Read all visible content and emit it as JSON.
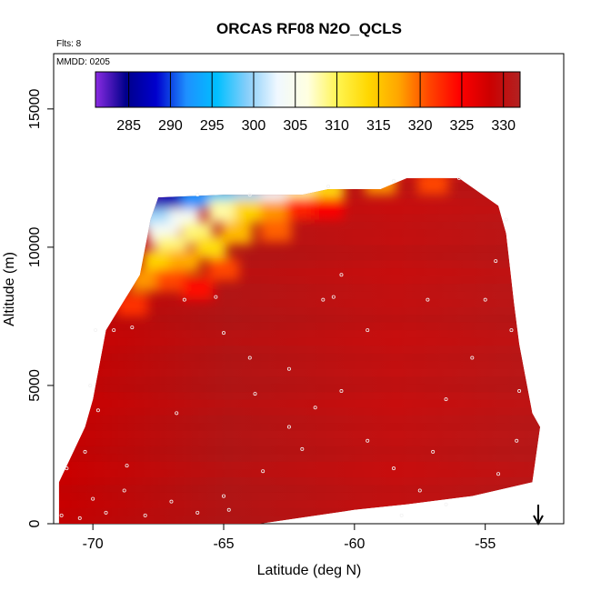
{
  "chart_data": {
    "type": "heatmap",
    "title": "ORCAS RF08 N2O_QCLS",
    "annotations": {
      "flights": "Flts: 8",
      "date": "MMDD: 0205"
    },
    "xlabel": "Latitude (deg N)",
    "ylabel": "Altitude (m)",
    "xlim": [
      -71.5,
      -52
    ],
    "ylim": [
      0,
      17000
    ],
    "x_ticks": [
      -70,
      -65,
      -60,
      -55
    ],
    "y_ticks": [
      0,
      5000,
      10000,
      15000
    ],
    "colorbar": {
      "range": [
        281,
        332
      ],
      "ticks": [
        285,
        290,
        295,
        300,
        305,
        310,
        315,
        320,
        325,
        330
      ],
      "colors": [
        "#8a2be2",
        "#00008b",
        "#0000cd",
        "#1e90ff",
        "#00bfff",
        "#87cefa",
        "#f0f8ff",
        "#ffffe0",
        "#fff44f",
        "#ffd700",
        "#ffa500",
        "#ff4500",
        "#ff0000",
        "#cc0000",
        "#b22222"
      ]
    },
    "domain_outline": [
      [
        -71.3,
        0
      ],
      [
        -71.3,
        1500
      ],
      [
        -70.3,
        3500
      ],
      [
        -70.0,
        4500
      ],
      [
        -69.5,
        7000
      ],
      [
        -68.2,
        9000
      ],
      [
        -67.8,
        11000
      ],
      [
        -67.5,
        11800
      ],
      [
        -65.0,
        11900
      ],
      [
        -62.0,
        11900
      ],
      [
        -61.0,
        12100
      ],
      [
        -59.0,
        12100
      ],
      [
        -58.0,
        12500
      ],
      [
        -56.0,
        12500
      ],
      [
        -54.5,
        11500
      ],
      [
        -54.2,
        10500
      ],
      [
        -53.9,
        8000
      ],
      [
        -53.7,
        6500
      ],
      [
        -53.2,
        4000
      ],
      [
        -52.9,
        3500
      ],
      [
        -53.2,
        1500
      ],
      [
        -55.5,
        1000
      ],
      [
        -58.0,
        700
      ],
      [
        -60.0,
        500
      ],
      [
        -63.6,
        0
      ]
    ],
    "upper_gradient_cells": [
      {
        "lat": -67.4,
        "alt": 11700,
        "value": 283
      },
      {
        "lat": -66.8,
        "alt": 11800,
        "value": 287
      },
      {
        "lat": -66.0,
        "alt": 11800,
        "value": 292
      },
      {
        "lat": -65.0,
        "alt": 11800,
        "value": 297
      },
      {
        "lat": -64.0,
        "alt": 11800,
        "value": 300
      },
      {
        "lat": -63.0,
        "alt": 11800,
        "value": 303
      },
      {
        "lat": -62.0,
        "alt": 11900,
        "value": 308
      },
      {
        "lat": -61.0,
        "alt": 12000,
        "value": 313
      },
      {
        "lat": -59.0,
        "alt": 12300,
        "value": 318
      },
      {
        "lat": -57.0,
        "alt": 12300,
        "value": 321
      },
      {
        "lat": -67.6,
        "alt": 11000,
        "value": 300
      },
      {
        "lat": -67.3,
        "alt": 10500,
        "value": 304
      },
      {
        "lat": -67.0,
        "alt": 10000,
        "value": 309
      },
      {
        "lat": -67.5,
        "alt": 9500,
        "value": 314
      },
      {
        "lat": -68.0,
        "alt": 8800,
        "value": 318
      },
      {
        "lat": -66.5,
        "alt": 11000,
        "value": 304
      },
      {
        "lat": -66.0,
        "alt": 10500,
        "value": 309
      },
      {
        "lat": -65.5,
        "alt": 10000,
        "value": 313
      },
      {
        "lat": -66.5,
        "alt": 9500,
        "value": 317
      },
      {
        "lat": -67.0,
        "alt": 8800,
        "value": 321
      },
      {
        "lat": -65.0,
        "alt": 11300,
        "value": 308
      },
      {
        "lat": -64.0,
        "alt": 11300,
        "value": 314
      },
      {
        "lat": -63.0,
        "alt": 11300,
        "value": 318
      },
      {
        "lat": -64.5,
        "alt": 10500,
        "value": 316
      },
      {
        "lat": -63.0,
        "alt": 10600,
        "value": 320
      },
      {
        "lat": -65.0,
        "alt": 9200,
        "value": 321
      },
      {
        "lat": -62.0,
        "alt": 11400,
        "value": 323
      },
      {
        "lat": -61.0,
        "alt": 11400,
        "value": 325
      },
      {
        "lat": -66.0,
        "alt": 8500,
        "value": 324
      },
      {
        "lat": -68.5,
        "alt": 7900,
        "value": 322
      }
    ],
    "obs_points": [
      [
        -71.2,
        300
      ],
      [
        -70.5,
        200
      ],
      [
        -70.0,
        900
      ],
      [
        -69.5,
        400
      ],
      [
        -68.8,
        1200
      ],
      [
        -68.0,
        300
      ],
      [
        -67.0,
        800
      ],
      [
        -66.0,
        400
      ],
      [
        -71.0,
        2000
      ],
      [
        -70.3,
        2600
      ],
      [
        -69.8,
        4100
      ],
      [
        -70.1,
        5000
      ],
      [
        -69.9,
        7000
      ],
      [
        -69.2,
        7000
      ],
      [
        -68.5,
        7100
      ],
      [
        -66.5,
        8100
      ],
      [
        -65.3,
        8200
      ],
      [
        -65.0,
        6900
      ],
      [
        -64.0,
        6000
      ],
      [
        -62.5,
        5600
      ],
      [
        -61.2,
        8100
      ],
      [
        -60.5,
        9000
      ],
      [
        -60.8,
        8200
      ],
      [
        -59.5,
        7000
      ],
      [
        -60.5,
        4800
      ],
      [
        -59.5,
        3000
      ],
      [
        -58.5,
        2000
      ],
      [
        -57.5,
        1200
      ],
      [
        -57.0,
        2600
      ],
      [
        -56.5,
        4500
      ],
      [
        -55.5,
        6000
      ],
      [
        -55.0,
        8100
      ],
      [
        -54.6,
        9500
      ],
      [
        -54.2,
        11000
      ],
      [
        -54.0,
        7000
      ],
      [
        -53.7,
        4800
      ],
      [
        -53.8,
        3000
      ],
      [
        -54.5,
        1800
      ],
      [
        -63.5,
        1900
      ],
      [
        -65.0,
        1000
      ],
      [
        -64.8,
        500
      ],
      [
        -66.8,
        4000
      ],
      [
        -68.7,
        2100
      ],
      [
        -63.8,
        4700
      ],
      [
        -61.5,
        4200
      ],
      [
        -62.5,
        3500
      ],
      [
        -56.5,
        700
      ],
      [
        -58.2,
        300
      ],
      [
        -66.0,
        11900
      ],
      [
        -64.0,
        11900
      ],
      [
        -61.0,
        12200
      ],
      [
        -58.5,
        12400
      ],
      [
        -56.0,
        12500
      ],
      [
        -62.0,
        2700
      ],
      [
        -57.2,
        8100
      ]
    ]
  }
}
